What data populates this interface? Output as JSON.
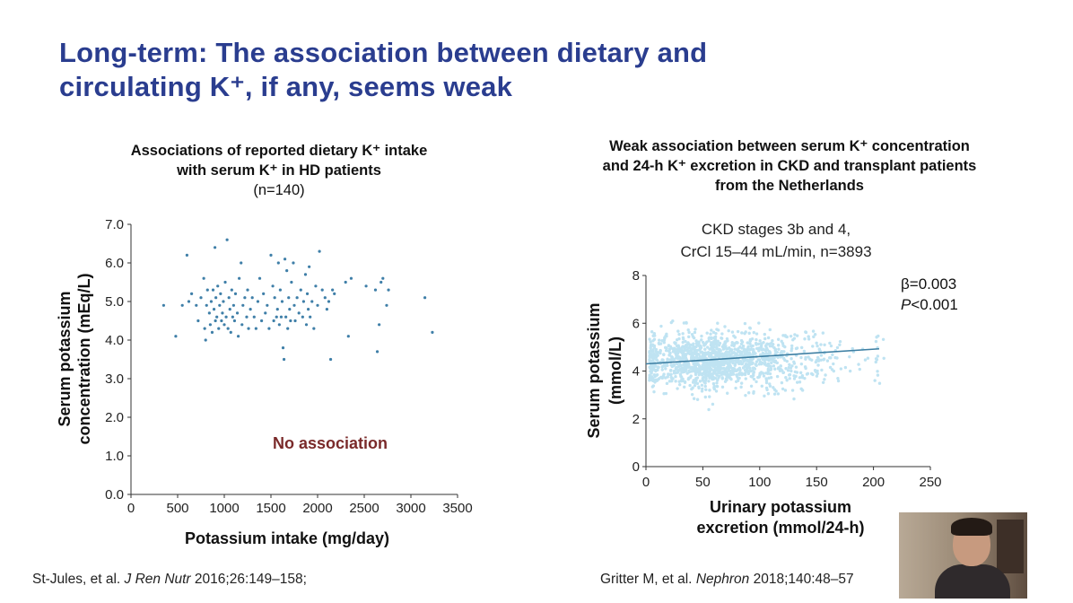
{
  "slide": {
    "title_lines": [
      "Long-term: The association between dietary and",
      "circulating K⁺, if any, seems weak"
    ]
  },
  "left_chart_header": {
    "lines": [
      "Associations of reported dietary K⁺ intake",
      "with serum K⁺ in HD patients"
    ],
    "n_label": "(n=140)"
  },
  "right_chart_header": {
    "lines": [
      "Weak association between serum K⁺ concentration",
      "and 24-h K⁺ excretion in CKD and transplant patients",
      "from the Netherlands"
    ],
    "subtitle_lines": [
      "CKD stages 3b and 4,",
      "CrCl 15–44 mL/min, n=3893"
    ],
    "beta": "β=0.003",
    "p_italic": "P",
    "p_rest": "<0.001"
  },
  "citations": {
    "left_prefix": "St-Jules, et al. ",
    "left_journal": "J Ren Nutr",
    "left_suffix": " 2016;26:149–158;",
    "right_prefix": "Gritter M, et al. ",
    "right_journal": "Nephron",
    "right_suffix": " 2018;140:48–57"
  },
  "colors": {
    "title": "#2a3d8f",
    "left_points": "#3f7fa8",
    "right_points": "#bfe3f2",
    "regression": "#3d7fa3",
    "annotation": "#7a2a2a"
  },
  "chart_data": [
    {
      "type": "scatter",
      "title": "Associations of reported dietary K⁺ intake with serum K⁺ in HD patients",
      "xlabel": "Potassium intake (mg/day)",
      "ylabel": "Serum potassium concentration (mEq/L)",
      "ylabel_lines": [
        "Serum potassium",
        "concentration (mEq/L)"
      ],
      "xlim": [
        0,
        3500
      ],
      "ylim": [
        0,
        7
      ],
      "x_ticks": [
        "0",
        "500",
        "1000",
        "1500",
        "2000",
        "2500",
        "3000",
        "3500"
      ],
      "y_ticks": [
        "0.0",
        "1.0",
        "2.0",
        "3.0",
        "4.0",
        "5.0",
        "6.0",
        "7.0"
      ],
      "annotation": "No association",
      "points": [
        [
          350,
          4.9
        ],
        [
          480,
          4.1
        ],
        [
          550,
          4.9
        ],
        [
          600,
          6.2
        ],
        [
          620,
          5.0
        ],
        [
          650,
          5.2
        ],
        [
          700,
          4.9
        ],
        [
          720,
          4.5
        ],
        [
          750,
          5.1
        ],
        [
          780,
          5.6
        ],
        [
          790,
          4.3
        ],
        [
          800,
          4.0
        ],
        [
          810,
          4.9
        ],
        [
          820,
          5.3
        ],
        [
          840,
          4.7
        ],
        [
          850,
          4.4
        ],
        [
          860,
          5.0
        ],
        [
          870,
          4.2
        ],
        [
          880,
          5.3
        ],
        [
          890,
          4.8
        ],
        [
          900,
          6.4
        ],
        [
          905,
          4.5
        ],
        [
          910,
          5.1
        ],
        [
          920,
          4.6
        ],
        [
          930,
          5.4
        ],
        [
          940,
          4.3
        ],
        [
          950,
          4.9
        ],
        [
          960,
          5.2
        ],
        [
          970,
          4.5
        ],
        [
          980,
          4.7
        ],
        [
          990,
          5.0
        ],
        [
          1000,
          4.4
        ],
        [
          1010,
          5.5
        ],
        [
          1020,
          4.6
        ],
        [
          1030,
          6.6
        ],
        [
          1040,
          4.3
        ],
        [
          1050,
          5.1
        ],
        [
          1060,
          4.8
        ],
        [
          1070,
          4.2
        ],
        [
          1080,
          5.3
        ],
        [
          1090,
          4.6
        ],
        [
          1100,
          4.9
        ],
        [
          1110,
          4.5
        ],
        [
          1120,
          5.2
        ],
        [
          1140,
          4.7
        ],
        [
          1150,
          4.1
        ],
        [
          1160,
          5.6
        ],
        [
          1180,
          6.0
        ],
        [
          1190,
          4.4
        ],
        [
          1200,
          4.9
        ],
        [
          1220,
          5.1
        ],
        [
          1240,
          4.6
        ],
        [
          1250,
          5.3
        ],
        [
          1260,
          4.3
        ],
        [
          1280,
          4.8
        ],
        [
          1300,
          5.1
        ],
        [
          1320,
          4.6
        ],
        [
          1340,
          4.3
        ],
        [
          1360,
          5.0
        ],
        [
          1380,
          5.6
        ],
        [
          1400,
          4.5
        ],
        [
          1420,
          5.2
        ],
        [
          1440,
          4.7
        ],
        [
          1460,
          4.9
        ],
        [
          1480,
          4.3
        ],
        [
          1500,
          6.2
        ],
        [
          1520,
          5.4
        ],
        [
          1530,
          4.5
        ],
        [
          1540,
          5.1
        ],
        [
          1560,
          4.6
        ],
        [
          1570,
          4.8
        ],
        [
          1580,
          6.0
        ],
        [
          1590,
          4.4
        ],
        [
          1600,
          5.3
        ],
        [
          1610,
          4.6
        ],
        [
          1620,
          5.0
        ],
        [
          1630,
          3.8
        ],
        [
          1640,
          3.5
        ],
        [
          1650,
          6.1
        ],
        [
          1660,
          4.6
        ],
        [
          1670,
          5.8
        ],
        [
          1680,
          4.3
        ],
        [
          1690,
          5.1
        ],
        [
          1700,
          4.8
        ],
        [
          1710,
          4.5
        ],
        [
          1720,
          5.5
        ],
        [
          1740,
          6.0
        ],
        [
          1750,
          4.9
        ],
        [
          1760,
          4.5
        ],
        [
          1780,
          5.1
        ],
        [
          1800,
          4.7
        ],
        [
          1820,
          5.3
        ],
        [
          1840,
          4.6
        ],
        [
          1850,
          5.0
        ],
        [
          1870,
          5.7
        ],
        [
          1880,
          4.4
        ],
        [
          1890,
          5.2
        ],
        [
          1900,
          4.8
        ],
        [
          1910,
          5.9
        ],
        [
          1920,
          4.6
        ],
        [
          1940,
          5.0
        ],
        [
          1960,
          4.3
        ],
        [
          1980,
          5.4
        ],
        [
          2000,
          4.9
        ],
        [
          2020,
          6.3
        ],
        [
          2050,
          5.3
        ],
        [
          2080,
          5.1
        ],
        [
          2100,
          4.8
        ],
        [
          2120,
          5.0
        ],
        [
          2140,
          3.5
        ],
        [
          2160,
          5.3
        ],
        [
          2180,
          5.2
        ],
        [
          2300,
          5.5
        ],
        [
          2330,
          4.1
        ],
        [
          2360,
          5.6
        ],
        [
          2520,
          5.4
        ],
        [
          2620,
          5.3
        ],
        [
          2640,
          3.7
        ],
        [
          2660,
          4.4
        ],
        [
          2680,
          5.5
        ],
        [
          2700,
          5.6
        ],
        [
          2740,
          4.9
        ],
        [
          2760,
          5.3
        ],
        [
          3150,
          5.1
        ],
        [
          3230,
          4.2
        ]
      ]
    },
    {
      "type": "scatter",
      "title": "Weak association between serum K⁺ concentration and 24-h K⁺ excretion in CKD and transplant patients from the Netherlands",
      "subtitle": "CKD stages 3b and 4, CrCl 15–44 mL/min, n=3893",
      "xlabel": "Urinary potassium excretion (mmol/24-h)",
      "xlabel_lines": [
        "Urinary potassium",
        "excretion (mmol/24-h)"
      ],
      "ylabel": "Serum potassium (mmol/L)",
      "ylabel_lines": [
        "Serum potassium",
        "(mmol/L)"
      ],
      "xlim": [
        0,
        250
      ],
      "ylim": [
        0,
        8
      ],
      "x_ticks": [
        "0",
        "50",
        "100",
        "150",
        "200",
        "250"
      ],
      "y_ticks": [
        "0",
        "2",
        "4",
        "6",
        "8"
      ],
      "n": 3893,
      "regression": {
        "x": [
          0,
          205
        ],
        "y": [
          4.3,
          4.93
        ]
      },
      "annotations": [
        "β=0.003",
        "P<0.001"
      ]
    }
  ]
}
